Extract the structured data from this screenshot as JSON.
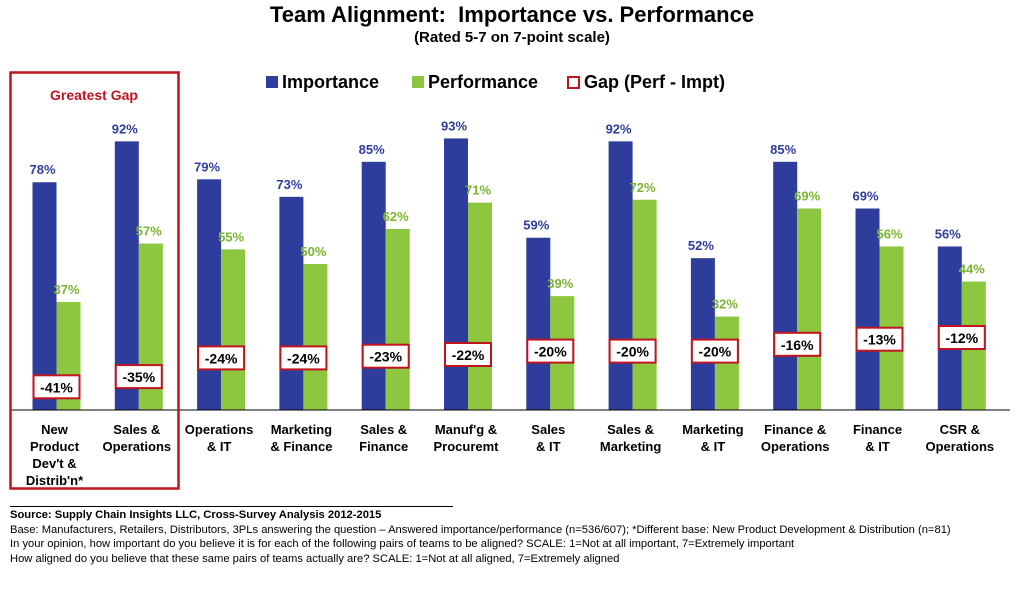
{
  "chart_data": {
    "type": "bar",
    "title": "Team Alignment:  Importance vs. Performance",
    "subtitle": "(Rated 5-7 on 7-point scale)",
    "categories": [
      "New Product Dev't & Distrib'n*",
      "Sales & Operations",
      "Operations & IT",
      "Marketing & Finance",
      "Sales & Finance",
      "Manuf'g & Procuremt",
      "Sales & IT",
      "Sales & Marketing",
      "Marketing & IT",
      "Finance & Operations",
      "Finance & IT",
      "CSR & Operations"
    ],
    "category_lines": [
      [
        "New",
        "Product",
        "Dev't &",
        "Distrib'n*"
      ],
      [
        "Sales &",
        "Operations"
      ],
      [
        "Operations",
        "& IT"
      ],
      [
        "Marketing",
        "& Finance"
      ],
      [
        "Sales &",
        "Finance"
      ],
      [
        "Manuf'g &",
        "Procuremt"
      ],
      [
        "Sales",
        "& IT"
      ],
      [
        "Sales &",
        "Marketing"
      ],
      [
        "Marketing",
        "& IT"
      ],
      [
        "Finance &",
        "Operations"
      ],
      [
        "Finance",
        "& IT"
      ],
      [
        "CSR &",
        "Operations"
      ]
    ],
    "series": [
      {
        "name": "Importance",
        "color": "#2E3D9C",
        "label_color": "#2E3D9C",
        "values": [
          78,
          92,
          79,
          73,
          85,
          93,
          59,
          92,
          52,
          85,
          69,
          56
        ]
      },
      {
        "name": "Performance",
        "color": "#8DC63F",
        "label_color": "#7AB530",
        "values": [
          37,
          57,
          55,
          50,
          62,
          71,
          39,
          72,
          32,
          69,
          56,
          44
        ]
      }
    ],
    "gap": {
      "name": "Gap (Perf - Impt)",
      "color": "#C0141F",
      "values": [
        -41,
        -35,
        -24,
        -24,
        -23,
        -22,
        -20,
        -20,
        -20,
        -16,
        -13,
        -12
      ]
    },
    "value_suffix": "%",
    "ylim": [
      0,
      100
    ],
    "grid": false,
    "legend_position": "top",
    "highlight": {
      "label": "Greatest Gap",
      "categories": [
        0,
        1
      ],
      "color": "#C0141F"
    }
  },
  "source": {
    "line": "Source:  Supply Chain Insights LLC, Cross-Survey Analysis 2012-2015",
    "notes": [
      "Base:  Manufacturers, Retailers, Distributors, 3PLs answering the question – Answered importance/performance (n=536/607); *Different base: New Product Development & Distribution (n=81)",
      "In your opinion, how important do you believe it is for each of the following pairs of teams to be aligned?  SCALE: 1=Not at all important, 7=Extremely important",
      "How aligned do you believe that these same pairs of teams actually are?  SCALE: 1=Not at all aligned, 7=Extremely aligned"
    ]
  }
}
